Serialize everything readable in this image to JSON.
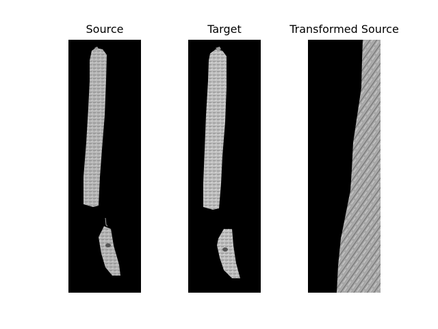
{
  "figure": {
    "panels": [
      {
        "title": "Source"
      },
      {
        "title": "Target"
      },
      {
        "title": "Transformed Source"
      }
    ]
  }
}
